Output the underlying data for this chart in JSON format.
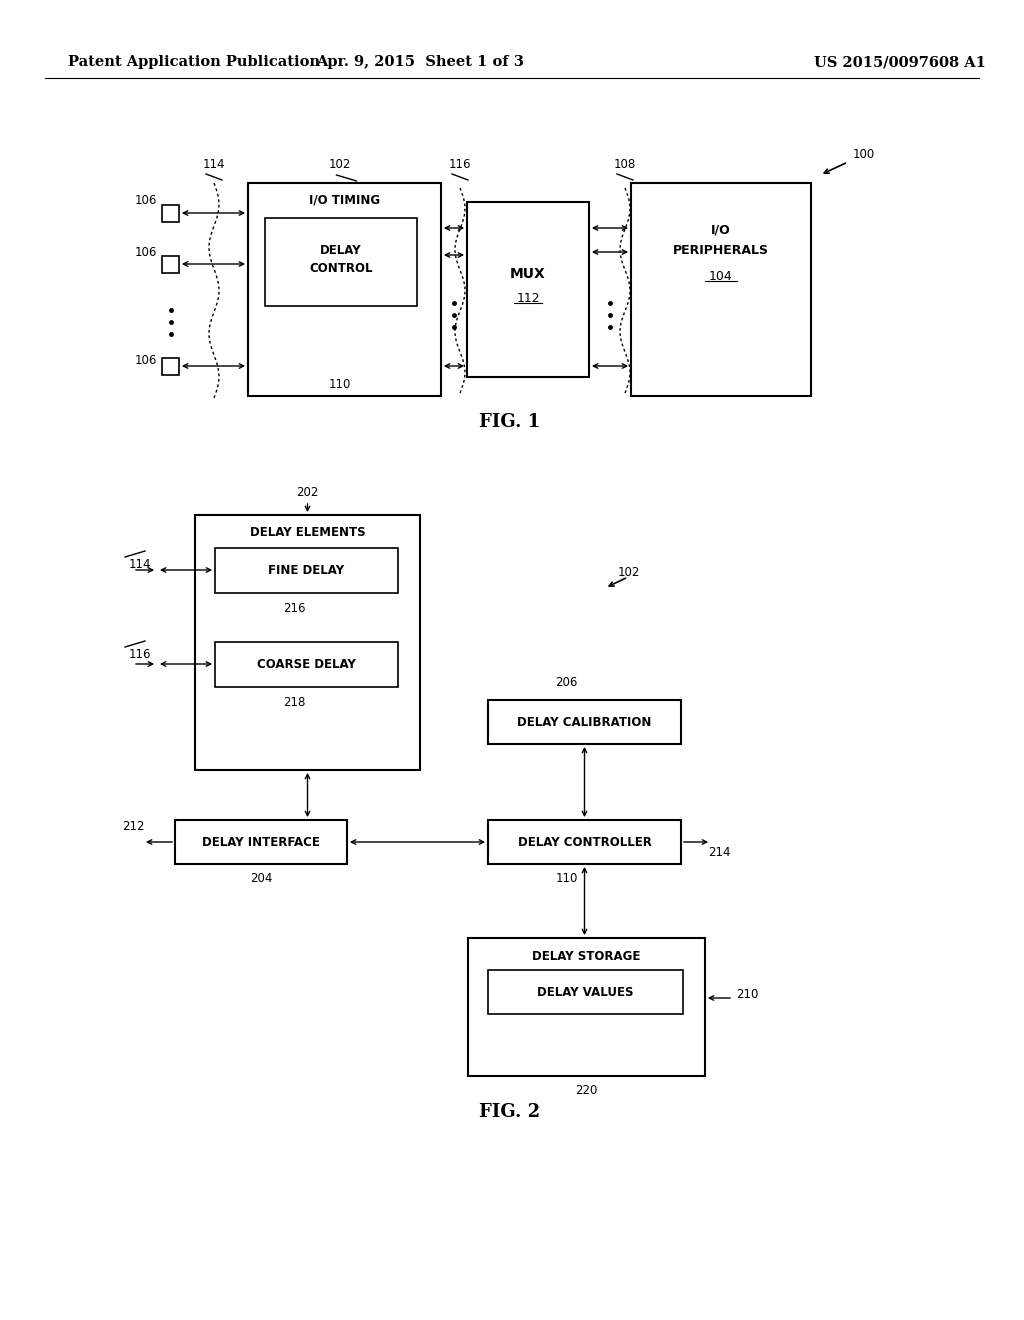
{
  "header_left": "Patent Application Publication",
  "header_center": "Apr. 9, 2015  Sheet 1 of 3",
  "header_right": "US 2015/0097608 A1",
  "fig1_label": "FIG. 1",
  "fig2_label": "FIG. 2",
  "bg_color": "#ffffff",
  "line_color": "#000000",
  "font_size_header": 10.5,
  "font_size_box": 8.5,
  "font_size_label": 8.5,
  "font_size_fig": 13
}
